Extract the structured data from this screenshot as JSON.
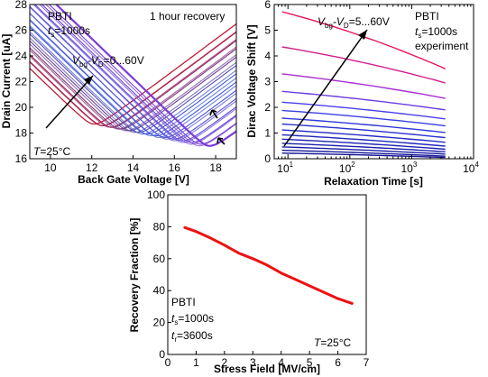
{
  "chart_data": [
    {
      "id": "a",
      "type": "line",
      "xlabel": "Back Gate Voltage [V]",
      "ylabel": "Drain Current [uA]",
      "xlim": [
        9,
        19
      ],
      "ylim": [
        16,
        28
      ],
      "xticks": [
        10,
        12,
        14,
        16,
        18
      ],
      "yticks": [
        16,
        18,
        20,
        22,
        24,
        26,
        28
      ],
      "grid": false,
      "annotations": {
        "pbti": "PBTI",
        "ts_label": "t",
        "ts_sub": "s",
        "ts_value": "=1000s",
        "recovery": "1 hour recovery",
        "sweep_label": "V",
        "sweep_sub1": "bg",
        "sweep_mid": "-V",
        "sweep_sub2": "D",
        "sweep_value": "=0...60V",
        "temp_label": "T",
        "temp_value": "=25°C"
      },
      "series_params": {
        "count": 14,
        "vdirac_start": 12.1,
        "vdirac_end": 17.7,
        "imin_start": 18.7,
        "imin_end": 17.0,
        "slope_left": 1.55,
        "slope_right": 1.2,
        "recovery_shift": 0.5,
        "color_start": "#c0102e",
        "color_mid": "#3a5fd9",
        "color_end": "#7b3cd6"
      }
    },
    {
      "id": "b",
      "type": "line",
      "xscale": "log",
      "xlabel": "Relaxation Time [s]",
      "ylabel": "Dirac Voltage Shift [V]",
      "xlim": [
        6,
        10000
      ],
      "ylim": [
        0,
        6
      ],
      "xticks": [
        "10^1",
        "10^2",
        "10^3",
        "10^4"
      ],
      "yticks": [
        0,
        1,
        2,
        3,
        4,
        5,
        6
      ],
      "grid": false,
      "annotations": {
        "sweep_label": "V",
        "sweep_sub1": "bg",
        "sweep_mid": "-V",
        "sweep_sub2": "D",
        "sweep_value": "=5...60V",
        "pbti": "PBTI",
        "ts_label": "t",
        "ts_sub": "s",
        "ts_value": "=1000s",
        "experiment": "experiment"
      },
      "x_range": [
        8,
        3500
      ],
      "series": [
        {
          "start": 5.72,
          "end": 3.5,
          "color": "#e8135a"
        },
        {
          "start": 4.35,
          "end": 2.95,
          "color": "#d21e8c"
        },
        {
          "start": 3.3,
          "end": 2.35,
          "color": "#a832d2"
        },
        {
          "start": 2.62,
          "end": 1.9,
          "color": "#6a3ee0"
        },
        {
          "start": 2.2,
          "end": 1.55,
          "color": "#4a40e6"
        },
        {
          "start": 1.88,
          "end": 1.28,
          "color": "#3a40e0"
        },
        {
          "start": 1.58,
          "end": 1.02,
          "color": "#3038d6"
        },
        {
          "start": 1.35,
          "end": 0.82,
          "color": "#2a32cc"
        },
        {
          "start": 1.12,
          "end": 0.64,
          "color": "#262cc4"
        },
        {
          "start": 0.93,
          "end": 0.49,
          "color": "#2228bc"
        },
        {
          "start": 0.76,
          "end": 0.37,
          "color": "#1f24b4"
        },
        {
          "start": 0.6,
          "end": 0.27,
          "color": "#1c20ac"
        },
        {
          "start": 0.46,
          "end": 0.18,
          "color": "#1a1ca4"
        },
        {
          "start": 0.33,
          "end": 0.1,
          "color": "#18189c"
        },
        {
          "start": 0.22,
          "end": 0.05,
          "color": "#161494"
        }
      ]
    },
    {
      "id": "c",
      "type": "line",
      "xlabel": "Stress Field [MV/cm]",
      "ylabel": "Recovery Fraction [%]",
      "xlim": [
        0,
        7
      ],
      "ylim": [
        0,
        100
      ],
      "xticks": [
        0,
        1,
        2,
        3,
        4,
        5,
        6,
        7
      ],
      "yticks": [
        0,
        20,
        40,
        60,
        80,
        100
      ],
      "grid": false,
      "color": "#ee1111",
      "x": [
        0.6,
        1.0,
        1.5,
        2.0,
        2.5,
        3.0,
        3.5,
        4.0,
        4.5,
        5.0,
        5.5,
        6.0,
        6.5
      ],
      "y": [
        79.5,
        77,
        73,
        68.5,
        63.5,
        60,
        56,
        51,
        47,
        43,
        39,
        35,
        32
      ],
      "annotations": {
        "pbti": "PBTI",
        "ts_label": "t",
        "ts_sub": "s",
        "ts_value": "=1000s",
        "tr_label": "t",
        "tr_sub": "r",
        "tr_value": "=3600s",
        "temp_label": "T",
        "temp_value": "=25°C"
      }
    }
  ]
}
